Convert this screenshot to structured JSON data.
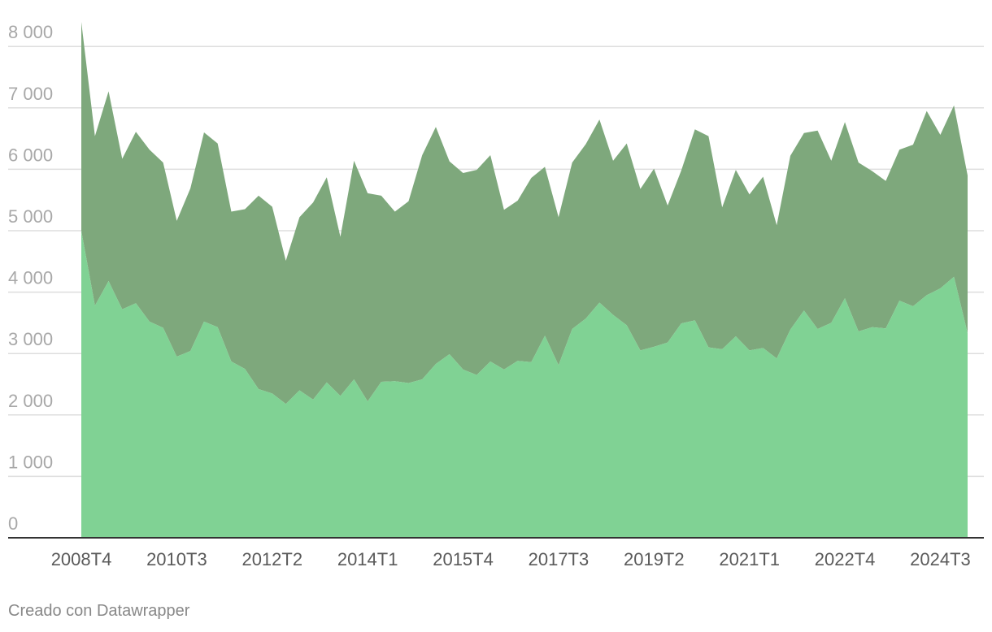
{
  "chart_data": {
    "type": "area",
    "stacked": true,
    "x": [
      "2008T4",
      "2009T1",
      "2009T2",
      "2009T3",
      "2009T4",
      "2010T1",
      "2010T2",
      "2010T3",
      "2010T4",
      "2011T1",
      "2011T2",
      "2011T3",
      "2011T4",
      "2012T1",
      "2012T2",
      "2012T3",
      "2012T4",
      "2013T1",
      "2013T2",
      "2013T3",
      "2013T4",
      "2014T1",
      "2014T2",
      "2014T3",
      "2014T4",
      "2015T1",
      "2015T2",
      "2015T3",
      "2015T4",
      "2016T1",
      "2016T2",
      "2016T3",
      "2016T4",
      "2017T1",
      "2017T2",
      "2017T3",
      "2017T4",
      "2018T1",
      "2018T2",
      "2018T3",
      "2018T4",
      "2019T1",
      "2019T2",
      "2019T3",
      "2019T4",
      "2020T1",
      "2020T2",
      "2020T3",
      "2020T4",
      "2021T1",
      "2021T2",
      "2021T3",
      "2021T4",
      "2022T1",
      "2022T2",
      "2022T3",
      "2022T4",
      "2023T1",
      "2023T2",
      "2023T3",
      "2023T4",
      "2024T1",
      "2024T2",
      "2024T3",
      "2024T4",
      "2025T1",
      "2025T2"
    ],
    "series": [
      {
        "values": [
          5000,
          3780,
          4180,
          3720,
          3820,
          3520,
          3420,
          2950,
          3040,
          3520,
          3430,
          2870,
          2750,
          2420,
          2350,
          2180,
          2400,
          2250,
          2530,
          2310,
          2580,
          2220,
          2540,
          2550,
          2520,
          2580,
          2830,
          2990,
          2740,
          2650,
          2870,
          2740,
          2880,
          2860,
          3290,
          2810,
          3400,
          3570,
          3830,
          3630,
          3460,
          3050,
          3110,
          3180,
          3490,
          3540,
          3100,
          3070,
          3280,
          3050,
          3090,
          2920,
          3390,
          3700,
          3400,
          3500,
          3900,
          3360,
          3430,
          3410,
          3860,
          3770,
          3950,
          4060,
          4250,
          3330,
          null
        ],
        "color": "#80d294"
      },
      {
        "values": [
          3400,
          2760,
          3090,
          2450,
          2790,
          2800,
          2690,
          2210,
          2650,
          3080,
          2990,
          2440,
          2600,
          3150,
          3040,
          2330,
          2820,
          3210,
          3340,
          2590,
          3560,
          3390,
          3030,
          2760,
          2960,
          3650,
          3860,
          3140,
          3200,
          3340,
          3360,
          2600,
          2610,
          3000,
          2750,
          2410,
          2710,
          2840,
          2980,
          2510,
          2960,
          2630,
          2900,
          2230,
          2490,
          3110,
          3440,
          2310,
          2710,
          2540,
          2790,
          2170,
          2830,
          2890,
          3230,
          2640,
          2870,
          2750,
          2540,
          2400,
          2460,
          2630,
          3000,
          2500,
          2790,
          2570,
          null
        ],
        "color": "#7ea87c"
      }
    ],
    "y_ticks": [
      "8 000",
      "7 000",
      "6 000",
      "5 000",
      "4 000",
      "3 000",
      "2 000",
      "1 000",
      "0"
    ],
    "x_ticks": [
      "2008T4",
      "2010T3",
      "2012T2",
      "2014T1",
      "2015T4",
      "2017T3",
      "2019T2",
      "2021T1",
      "2022T4",
      "2024T3"
    ],
    "ylim": [
      0,
      8400
    ],
    "grid": true,
    "legend": "none"
  },
  "colors": {
    "grid": "#dedede",
    "tick_text_y": "#a8a8a8",
    "tick_text_x": "#5a5a5a",
    "axis": "#333333",
    "footer_text": "#888888"
  },
  "footer": {
    "credit": "Creado con Datawrapper"
  }
}
